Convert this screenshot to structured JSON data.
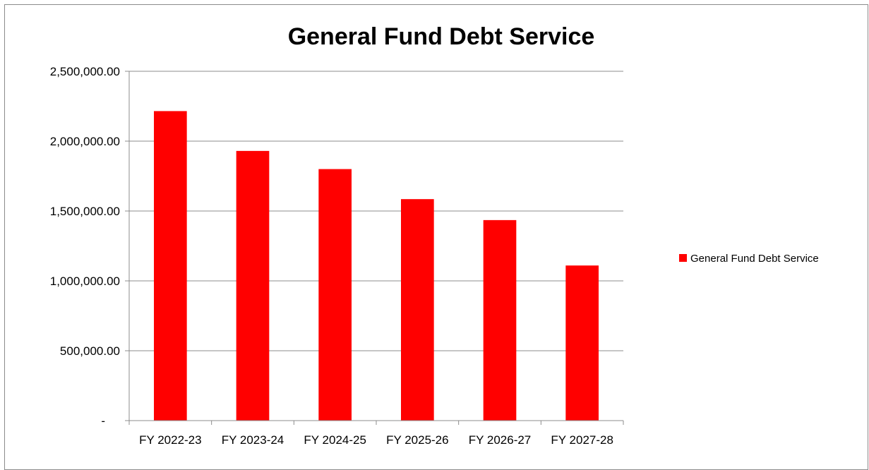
{
  "chart_data": {
    "type": "bar",
    "title": "General Fund Debt Service",
    "categories": [
      "FY 2022-23",
      "FY 2023-24",
      "FY 2024-25",
      "FY 2025-26",
      "FY 2026-27",
      "FY 2027-28"
    ],
    "series": [
      {
        "name": "General Fund Debt Service",
        "color": "#ff0000",
        "values": [
          2215000,
          1930000,
          1800000,
          1585000,
          1435000,
          1110000
        ]
      }
    ],
    "ylim": [
      0,
      2500000
    ],
    "yticks": [
      0,
      500000,
      1000000,
      1500000,
      2000000,
      2500000
    ],
    "ytick_labels": [
      "-",
      "500,000.00",
      "1,000,000.00",
      "1,500,000.00",
      "2,000,000.00",
      "2,500,000.00"
    ],
    "grid": true,
    "legend_position": "right"
  }
}
